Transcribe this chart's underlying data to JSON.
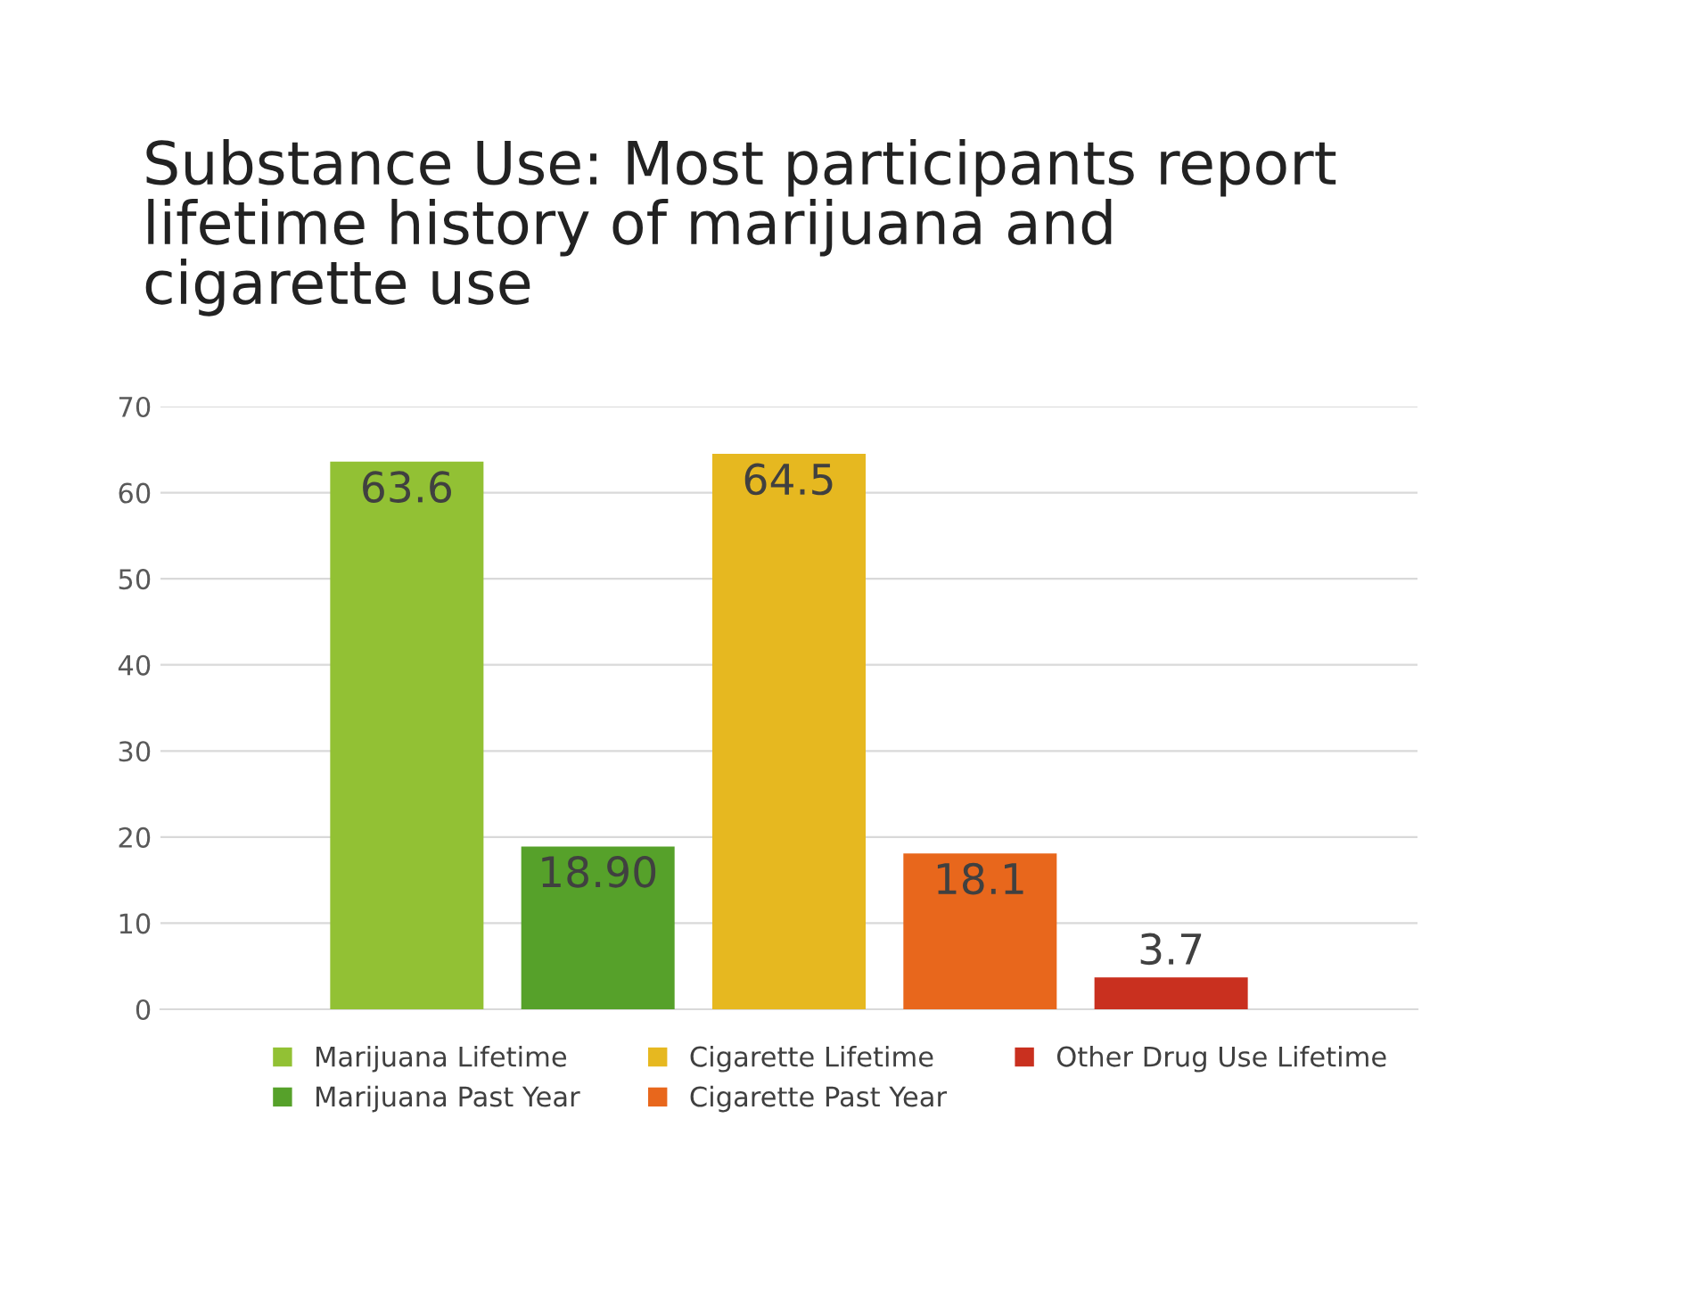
{
  "chart_data": {
    "type": "bar",
    "title": "Substance Use: Most participants report lifetime history of marijuana and cigarette use",
    "categories": [
      null
    ],
    "series": [
      {
        "name": "Marijuana Lifetime",
        "color": "#92c134",
        "values": [
          63.6
        ],
        "value_labels": [
          "63.6"
        ]
      },
      {
        "name": "Marijuana Past Year",
        "color": "#56a12a",
        "values": [
          18.9
        ],
        "value_labels": [
          "18.90"
        ]
      },
      {
        "name": "Cigarette Lifetime",
        "color": "#e6b820",
        "values": [
          64.5
        ],
        "value_labels": [
          "64.5"
        ]
      },
      {
        "name": "Cigarette Past Year",
        "color": "#e8671c",
        "values": [
          18.1
        ],
        "value_labels": [
          "18.1"
        ]
      },
      {
        "name": "Other Drug Use Lifetime",
        "color": "#c9301f",
        "values": [
          3.7
        ],
        "value_labels": [
          "3.7"
        ]
      }
    ],
    "ylim": [
      0,
      70
    ],
    "yticks": [
      0,
      10,
      20,
      30,
      40,
      50,
      60,
      70
    ],
    "grid": "y",
    "legend": "bottom"
  }
}
